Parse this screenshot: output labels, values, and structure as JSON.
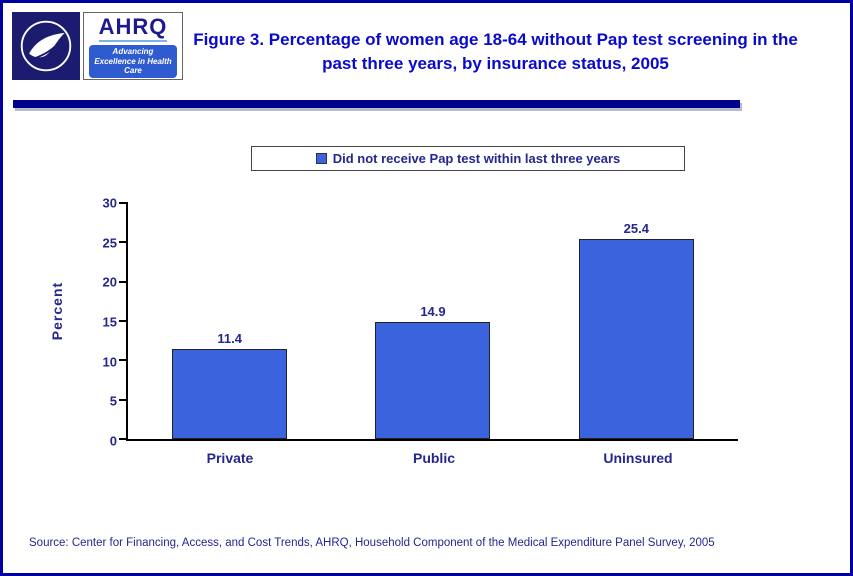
{
  "header": {
    "title": "Figure 3. Percentage of women age 18-64 without Pap test screening in the past three years, by insurance status, 2005",
    "ahrq_logo_text": "AHRQ",
    "ahrq_tagline": "Advancing Excellence in Health Care",
    "hhs_logo": "hhs-seal-icon"
  },
  "legend": {
    "label": "Did not receive Pap test within last three years"
  },
  "chart_data": {
    "type": "bar",
    "categories": [
      "Private",
      "Public",
      "Uninsured"
    ],
    "values": [
      11.4,
      14.9,
      25.4
    ],
    "title": "Figure 3. Percentage of women age 18-64 without Pap test screening in the past three years, by insurance status, 2005",
    "xlabel": "",
    "ylabel": "Percent",
    "ylim": [
      0,
      30
    ],
    "ytick_step": 5,
    "grid": false,
    "legend_entries": [
      "Did not receive Pap test within last three years"
    ],
    "legend_position": "top",
    "value_labels": [
      "11.4",
      "14.9",
      "25.4"
    ]
  },
  "footer": {
    "source": "Source: Center for Financing, Access, and Cost Trends, AHRQ, Household Component of the Medical Expenditure Panel Survey, 2005"
  },
  "colors": {
    "bar": "#3B63DE",
    "navy": "#26268F",
    "title": "#0A0ACD",
    "rule": "#00008B",
    "border": "#0000A0"
  }
}
